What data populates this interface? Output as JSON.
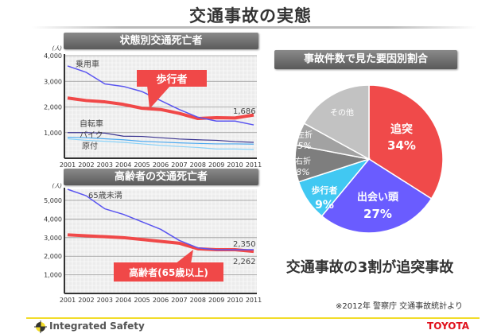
{
  "page_title": "交通事故の実態",
  "slogan": "交通事故の3割が追突事故",
  "source": "※2012年 警察庁 交通事故統計より",
  "footer": {
    "brand": "Integrated Safety",
    "logo": "TOYOTA"
  },
  "colors": {
    "accent_red": "#f04848",
    "blue": "#5a55f0",
    "yellow": "#f2dc2a"
  },
  "chart_data": [
    {
      "type": "line",
      "title": "状態別交通死亡者",
      "ylabel": "(人)",
      "ylim": [
        0,
        4000
      ],
      "yticks": [
        "1,000",
        "2,000",
        "3,000",
        "4,000"
      ],
      "ytick_values": [
        1000,
        2000,
        3000,
        4000
      ],
      "x": [
        "2001",
        "2002",
        "2003",
        "2004",
        "2005",
        "2006",
        "2007",
        "2008",
        "2009",
        "2010",
        "2011"
      ],
      "grid": true,
      "series": [
        {
          "name": "乗用車",
          "color": "#5a55f0",
          "width": 1.5,
          "values": [
            3600,
            3350,
            2900,
            2800,
            2600,
            2250,
            1900,
            1600,
            1450,
            1450,
            1300
          ]
        },
        {
          "name": "歩行者",
          "color": "#f04848",
          "width": 4,
          "values": [
            2350,
            2250,
            2200,
            2100,
            1950,
            1900,
            1750,
            1550,
            1580,
            1570,
            1686
          ]
        },
        {
          "name": "自転車",
          "color": "#3a3490",
          "width": 1.2,
          "values": [
            1000,
            1000,
            980,
            860,
            850,
            800,
            750,
            720,
            700,
            650,
            620
          ]
        },
        {
          "name": "バイク",
          "color": "#4aa8f0",
          "width": 1.2,
          "values": [
            820,
            800,
            760,
            720,
            660,
            630,
            600,
            580,
            560,
            560,
            550
          ]
        },
        {
          "name": "原付",
          "color": "#8ad2f8",
          "width": 1.2,
          "values": [
            760,
            700,
            660,
            620,
            560,
            500,
            460,
            420,
            360,
            360,
            340
          ]
        }
      ],
      "annotations": [
        "1,686"
      ]
    },
    {
      "type": "line",
      "title": "高齢者の交通死亡者",
      "ylabel": "(人)",
      "ylim": [
        0,
        5600
      ],
      "yticks": [
        "1,000",
        "2,000",
        "3,000",
        "4,000",
        "5,000"
      ],
      "ytick_values": [
        1000,
        2000,
        3000,
        4000,
        5000
      ],
      "x": [
        "2001",
        "2002",
        "2003",
        "2004",
        "2005",
        "2006",
        "2007",
        "2008",
        "2009",
        "2010",
        "2011"
      ],
      "grid": true,
      "series": [
        {
          "name": "65歳未満",
          "color": "#5a55f0",
          "width": 1.5,
          "values": [
            5600,
            5250,
            4550,
            4250,
            3850,
            3450,
            2850,
            2450,
            2350,
            2350,
            2350
          ]
        },
        {
          "name": "高齢者(65歳以上)",
          "color": "#f04848",
          "width": 4,
          "values": [
            3150,
            3100,
            3050,
            3000,
            2900,
            2800,
            2700,
            2400,
            2350,
            2350,
            2262
          ]
        }
      ],
      "annotations": [
        "2,350",
        "2,262"
      ]
    },
    {
      "type": "pie",
      "title": "事故件数で見た要因別割合",
      "slices": [
        {
          "label": "追突",
          "value": 34,
          "pct": "34%",
          "color": "#f04a4a"
        },
        {
          "label": "出会い頭",
          "value": 27,
          "pct": "27%",
          "color": "#6a5cff"
        },
        {
          "label": "歩行者",
          "value": 9,
          "pct": "9%",
          "color": "#41c8f2"
        },
        {
          "label": "右折",
          "value": 8,
          "pct": "8%",
          "color": "#7e7e7e"
        },
        {
          "label": "左折",
          "value": 5,
          "pct": "5%",
          "color": "#a2a2a2"
        },
        {
          "label": "その他",
          "value": 17,
          "pct": "",
          "color": "#c2c2c2"
        }
      ]
    }
  ]
}
